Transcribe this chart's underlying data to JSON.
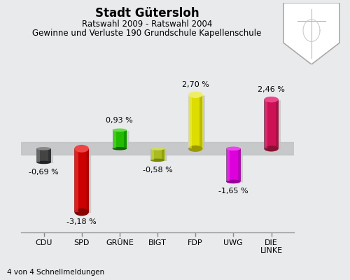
{
  "title": "Stadt Gütersloh",
  "subtitle1": "Ratswahl 2009 - Ratswahl 2004",
  "subtitle2": "Gewinne und Verluste 190 Grundschule Kapellenschule",
  "footer": "4 von 4 Schnellmeldungen",
  "categories": [
    "CDU",
    "SPD",
    "GRÜNE",
    "BIGT",
    "FDP",
    "UWG",
    "DIE\nLINKE"
  ],
  "values": [
    -0.69,
    -3.18,
    0.93,
    -0.58,
    2.7,
    -1.65,
    2.46
  ],
  "value_labels": [
    "-0,69 %",
    "-3,18 %",
    "0,93 %",
    "-0,58 %",
    "2,70 %",
    "-1,65 %",
    "2,46 %"
  ],
  "colors_main": [
    "#444444",
    "#cc0000",
    "#22bb00",
    "#aabb22",
    "#dddd00",
    "#dd00dd",
    "#cc1155"
  ],
  "colors_light": [
    "#888888",
    "#ee4444",
    "#66dd44",
    "#ccdd66",
    "#eeee66",
    "#ee44ee",
    "#ee4488"
  ],
  "colors_dark": [
    "#222222",
    "#880000",
    "#116600",
    "#778800",
    "#999900",
    "#990099",
    "#881133"
  ],
  "bar_width": 0.38,
  "ylim": [
    -4.2,
    3.8
  ],
  "background_color": "#e8eaec",
  "zero_band_color": "#c0c2c4",
  "zero_band_alpha": 0.85,
  "shadow_color": "#b0b2b4",
  "shadow_alpha": 0.55
}
